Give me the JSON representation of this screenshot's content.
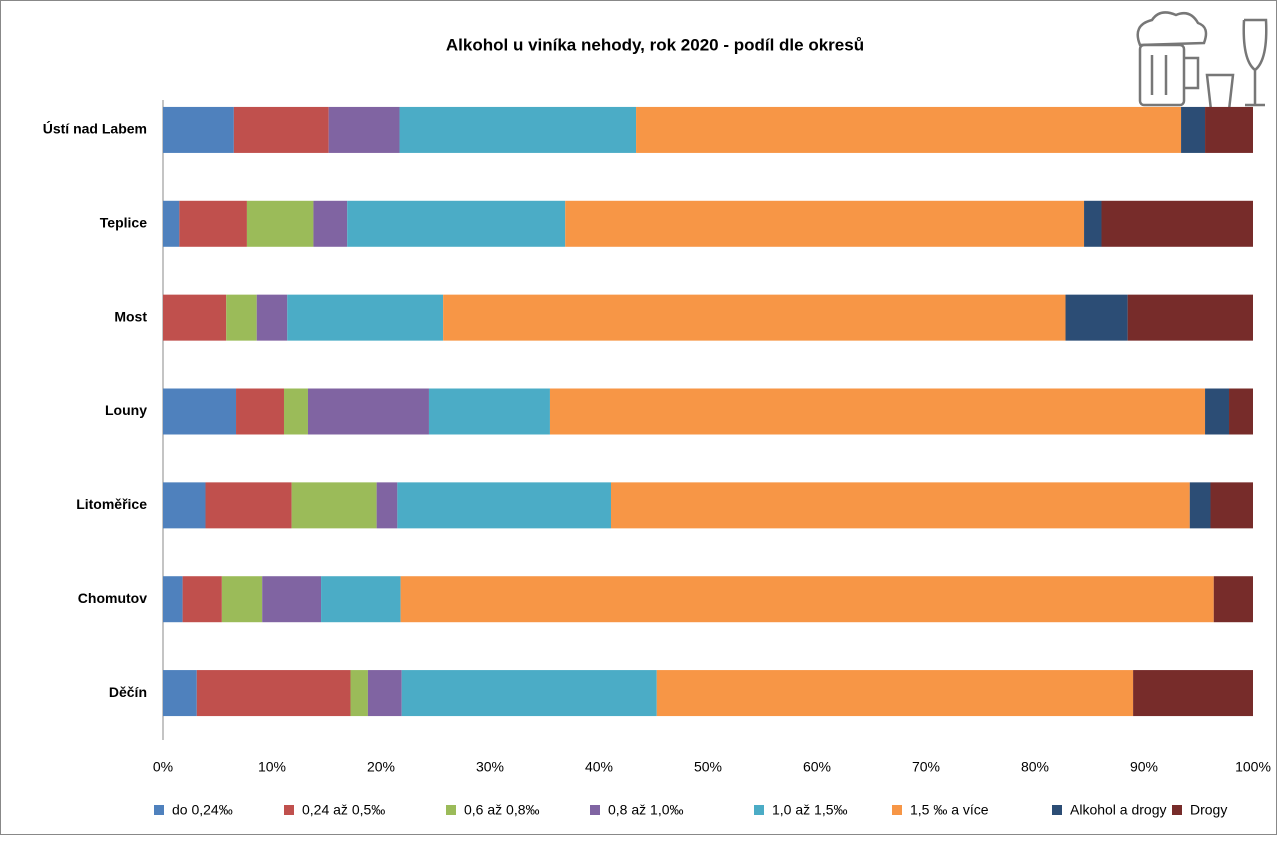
{
  "chart_data": {
    "type": "stacked-bar-horizontal",
    "title": "Alkohol u viníka nehody, rok 2020 - podíl dle okresů",
    "categories": [
      "Ústí nad Labem",
      "Teplice",
      "Most",
      "Louny",
      "Litoměřice",
      "Chomutov",
      "Děčín"
    ],
    "series": [
      {
        "name": "do 0,24‰",
        "color": "#4f81bd",
        "values": [
          6.5,
          1.5,
          0,
          6.7,
          3.9,
          1.8,
          3.1
        ]
      },
      {
        "name": "0,24 až 0,5‰",
        "color": "#c0504d",
        "values": [
          8.7,
          6.2,
          5.8,
          4.4,
          7.9,
          3.6,
          14.1
        ]
      },
      {
        "name": "0,6 až 0,8‰",
        "color": "#9bbb59",
        "values": [
          0,
          6.1,
          2.8,
          2.2,
          7.8,
          3.7,
          1.6
        ]
      },
      {
        "name": "0,8 až 1,0‰",
        "color": "#8064a2",
        "values": [
          6.5,
          3.1,
          2.8,
          11.1,
          1.9,
          5.4,
          3.1
        ]
      },
      {
        "name": "1,0 až 1,5‰",
        "color": "#4bacc6",
        "values": [
          21.7,
          20.0,
          14.3,
          11.1,
          19.6,
          7.3,
          23.4
        ]
      },
      {
        "name": "1,5 ‰ a více",
        "color": "#f79646",
        "values": [
          50.0,
          47.6,
          57.1,
          60.1,
          53.1,
          74.6,
          43.7
        ]
      },
      {
        "name": "Alkohol a drogy",
        "color": "#2c4d75",
        "values": [
          2.2,
          1.6,
          5.7,
          2.2,
          1.9,
          0,
          0
        ]
      },
      {
        "name": "Drogy",
        "color": "#772c2a",
        "values": [
          4.4,
          13.9,
          11.5,
          2.2,
          3.9,
          3.6,
          11.0
        ]
      }
    ],
    "xlim": [
      0,
      100
    ],
    "xticks": [
      {
        "value": 0,
        "label": "0%"
      },
      {
        "value": 10,
        "label": "10%"
      },
      {
        "value": 20,
        "label": "20%"
      },
      {
        "value": 30,
        "label": "30%"
      },
      {
        "value": 40,
        "label": "40%"
      },
      {
        "value": 50,
        "label": "50%"
      },
      {
        "value": 60,
        "label": "60%"
      },
      {
        "value": 70,
        "label": "70%"
      },
      {
        "value": 80,
        "label": "80%"
      },
      {
        "value": 90,
        "label": "90%"
      },
      {
        "value": 100,
        "label": "100%"
      }
    ],
    "legend": "bottom"
  }
}
